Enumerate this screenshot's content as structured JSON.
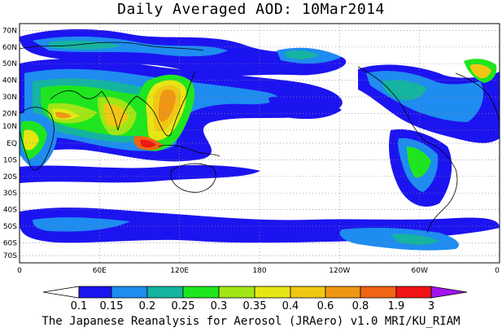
{
  "title": "Daily Averaged AOD: 10Mar2014",
  "credit": "The Japanese Reanalysis for Aerosol (JRAero) v1.0 MRI/KU_RIAM",
  "map": {
    "lat_labels": [
      "70N",
      "60N",
      "50N",
      "40N",
      "30N",
      "20N",
      "10N",
      "EQ",
      "10S",
      "20S",
      "30S",
      "40S",
      "50S",
      "60S",
      "70S"
    ],
    "lon_labels": [
      "0",
      "60E",
      "120E",
      "180",
      "120W",
      "60W",
      "0"
    ],
    "projection": "equirectangular",
    "grid": "dotted"
  },
  "legend": {
    "labels": [
      "0.1",
      "0.15",
      "0.2",
      "0.25",
      "0.3",
      "0.35",
      "0.4",
      "0.6",
      "0.8",
      "1.9",
      "3"
    ],
    "colors": [
      "#ffffff",
      "#1c14f0",
      "#1e8cf0",
      "#14b4a0",
      "#1ee61e",
      "#a0e614",
      "#e6e614",
      "#f0c814",
      "#f09614",
      "#f06414",
      "#f01414",
      "#a014f0"
    ]
  }
}
